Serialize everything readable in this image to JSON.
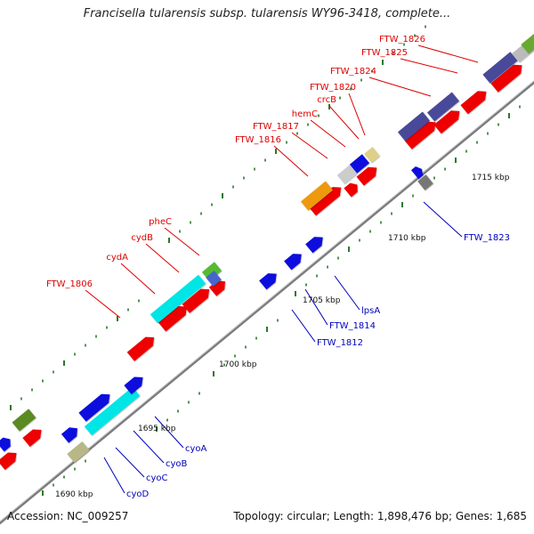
{
  "title": "Francisella tularensis subsp. tularensis WY96-3418, complete...",
  "footer": {
    "accession": "Accession: NC_009257",
    "topology": "Topology: circular; Length: 1,898,476 bp; Genes: 1,685"
  },
  "colors": {
    "backbone": "#888888",
    "forward_label": "#dd0000",
    "reverse_label": "#0000bb",
    "tick": "#2a7a2a"
  },
  "scale_ticks": [
    "1690 kbp",
    "1695 kbp",
    "1700 kbp",
    "1705 kbp",
    "1710 kbp",
    "1715 kbp"
  ],
  "forward_labels": [
    "FTW_1806",
    "cydA",
    "cydB",
    "pheC",
    "FTW_1816",
    "FTW_1817",
    "hemC",
    "crcB",
    "FTW_1820",
    "FTW_1824",
    "FTW_1825",
    "FTW_1826"
  ],
  "reverse_labels": [
    "cyoD",
    "cyoC",
    "cyoB",
    "cyoA",
    "FTW_1812",
    "FTW_1814",
    "lpsA",
    "FTW_1823"
  ]
}
